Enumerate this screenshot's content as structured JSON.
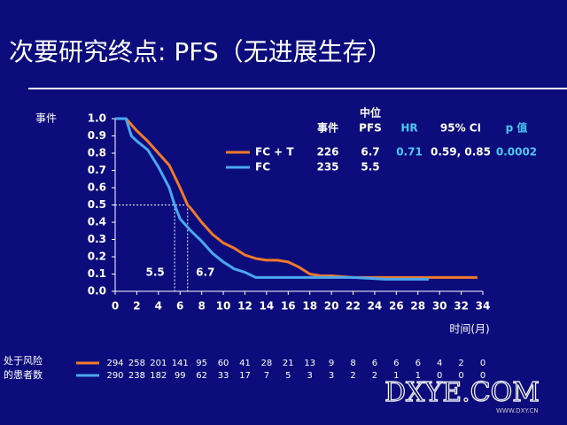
{
  "chart_data": {
    "type": "line",
    "title": "次要研究终点: PFS（无进展生存）",
    "ylabel": "事件",
    "xlabel": "时间(月)",
    "xlim": [
      0,
      34
    ],
    "xticks": [
      0,
      2,
      4,
      6,
      8,
      10,
      12,
      14,
      16,
      18,
      20,
      22,
      24,
      26,
      28,
      30,
      32,
      34
    ],
    "ylim": [
      0,
      1
    ],
    "yticks": [
      {
        "value": 0,
        "label": "0.0"
      },
      0.1,
      0.2,
      0.3,
      0.4,
      0.5,
      0.6,
      0.7,
      0.8,
      0.9,
      {
        "value": 1,
        "label": "1.0"
      }
    ],
    "grid": false,
    "series": [
      {
        "name": "FC + T",
        "color": "#f07a2a",
        "x": [
          0,
          1,
          2,
          3,
          4,
          5,
          6,
          6.7,
          7,
          8,
          9,
          10,
          11,
          12,
          13,
          14,
          15,
          16,
          17,
          18,
          19,
          20,
          22,
          33.5
        ],
        "values": [
          1,
          1,
          0.93,
          0.87,
          0.8,
          0.73,
          0.6,
          0.5,
          0.48,
          0.4,
          0.33,
          0.28,
          0.25,
          0.21,
          0.19,
          0.18,
          0.18,
          0.17,
          0.14,
          0.1,
          0.09,
          0.09,
          0.08,
          0.08
        ]
      },
      {
        "name": "FC",
        "color": "#4aa8f0",
        "x": [
          0,
          1,
          1.5,
          2,
          3,
          4,
          5,
          5.5,
          6,
          7,
          8,
          9,
          10,
          11,
          12,
          13,
          14,
          20,
          22,
          25,
          29
        ],
        "values": [
          1,
          1,
          0.9,
          0.87,
          0.82,
          0.72,
          0.6,
          0.5,
          0.42,
          0.35,
          0.29,
          0.22,
          0.17,
          0.13,
          0.11,
          0.08,
          0.08,
          0.08,
          0.08,
          0.07,
          0.07
        ]
      }
    ],
    "median_lines": {
      "y": 0.5,
      "x": [
        5.5,
        6.7
      ]
    },
    "summary_table": {
      "headers": [
        "事件",
        "中位",
        "PFS",
        "HR",
        "95% CI",
        "p 值"
      ],
      "rows": [
        [
          "226",
          "6.7",
          "0.71",
          "0.59, 0.85",
          "0.0002"
        ],
        [
          "235",
          "5.5"
        ]
      ]
    },
    "at_risk": {
      "label": [
        "处于风险",
        "的患者数"
      ],
      "counts": [
        [
          294,
          258,
          201,
          141,
          95,
          60,
          41,
          28,
          21,
          13,
          9,
          8,
          6,
          6,
          6,
          4,
          2,
          0
        ],
        [
          290,
          238,
          182,
          99,
          62,
          33,
          17,
          7,
          5,
          3,
          3,
          2,
          2,
          1,
          1,
          0,
          0,
          0
        ]
      ]
    },
    "watermark": [
      "DXYE.COM",
      "WWW.DXY.CN"
    ]
  }
}
